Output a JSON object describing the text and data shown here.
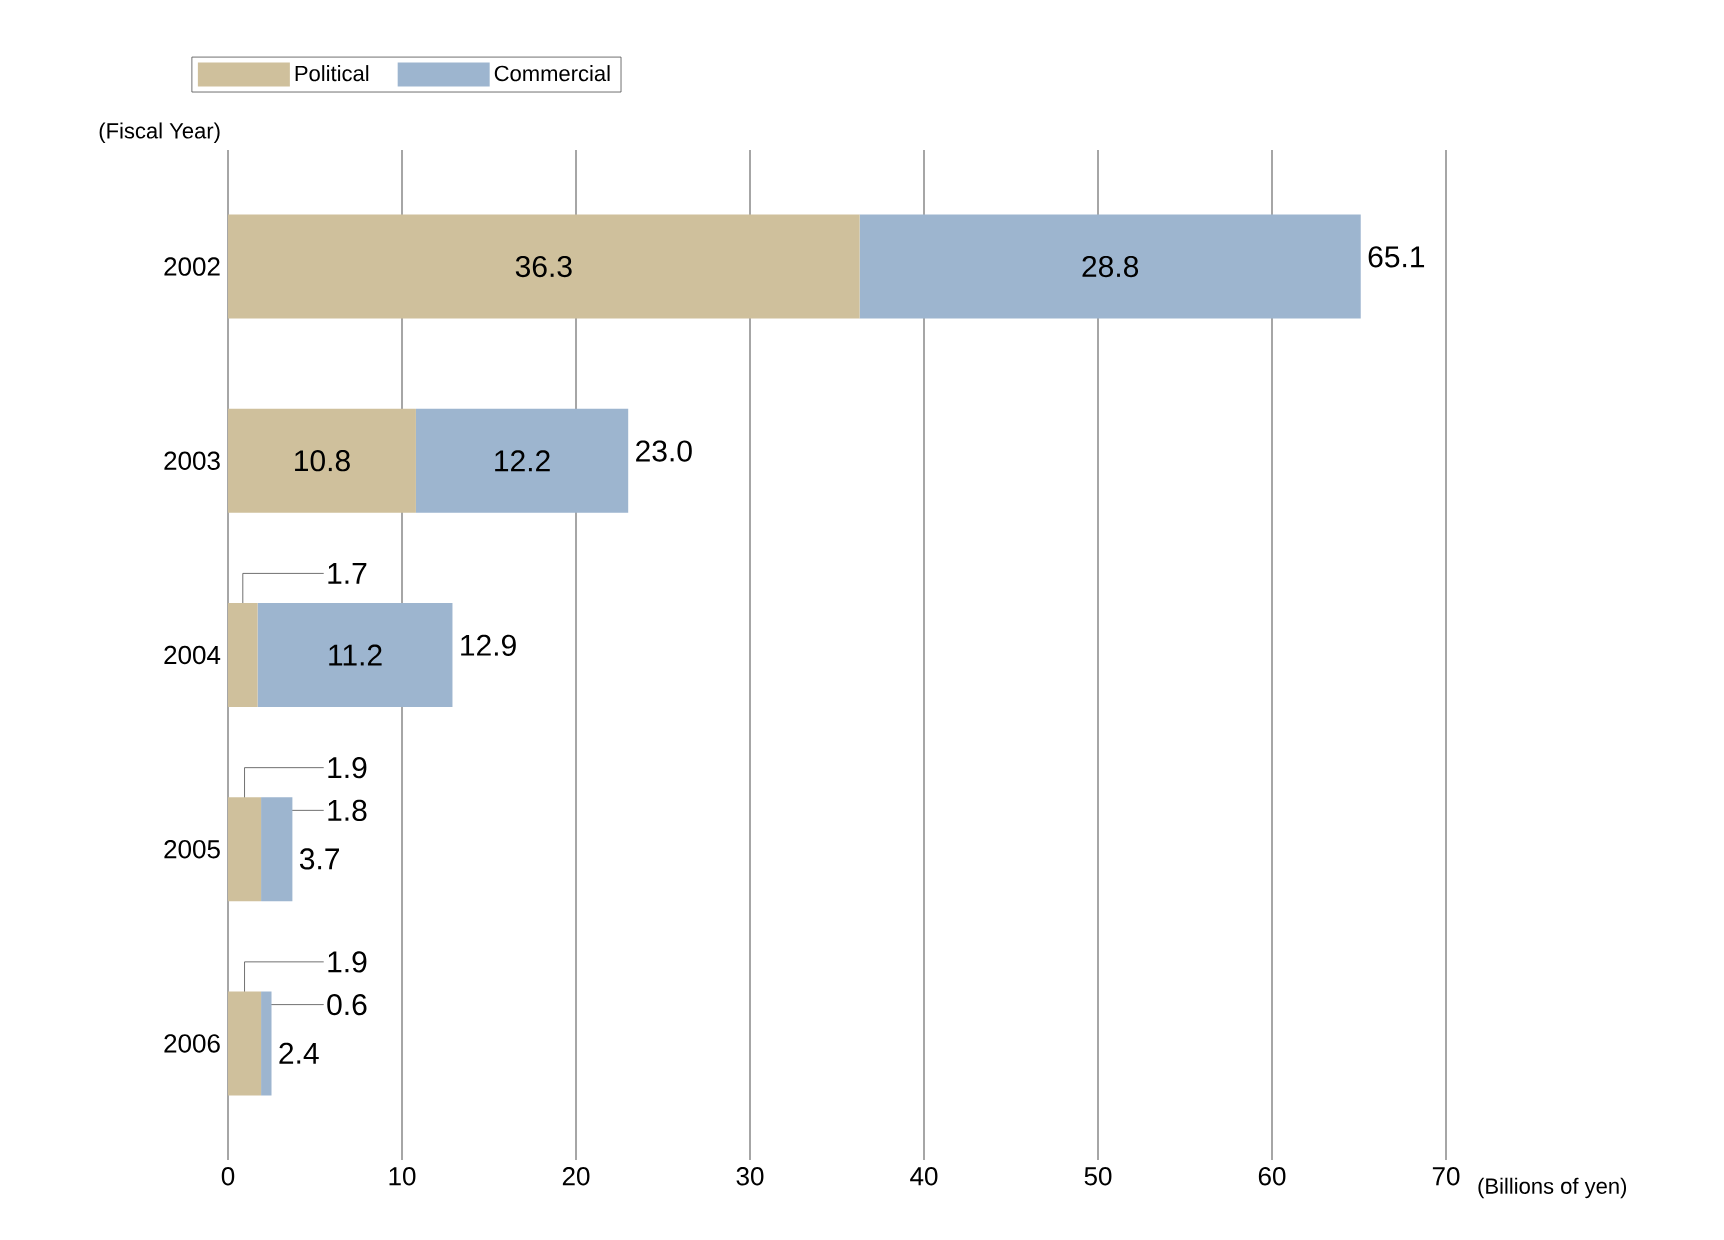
{
  "chart_data": {
    "type": "bar",
    "orientation": "horizontal",
    "stacked": true,
    "categories": [
      "2002",
      "2003",
      "2004",
      "2005",
      "2006"
    ],
    "series": [
      {
        "name": "Political",
        "color": "#cfc09c",
        "values": [
          36.3,
          10.8,
          1.7,
          1.9,
          1.9
        ]
      },
      {
        "name": "Commercial",
        "color": "#9db5cf",
        "values": [
          28.8,
          12.2,
          11.2,
          1.8,
          0.6
        ]
      }
    ],
    "totals": [
      "65.1",
      "23.0",
      "12.9",
      "3.7",
      "2.4"
    ],
    "data_labels": true,
    "xlim": [
      0,
      70
    ],
    "xticks": [
      0,
      10,
      20,
      30,
      40,
      50,
      60,
      70
    ],
    "xlabel": "(Billions of yen)",
    "ylabel": "(Fiscal Year)",
    "grid": "x",
    "legend": "top left"
  }
}
